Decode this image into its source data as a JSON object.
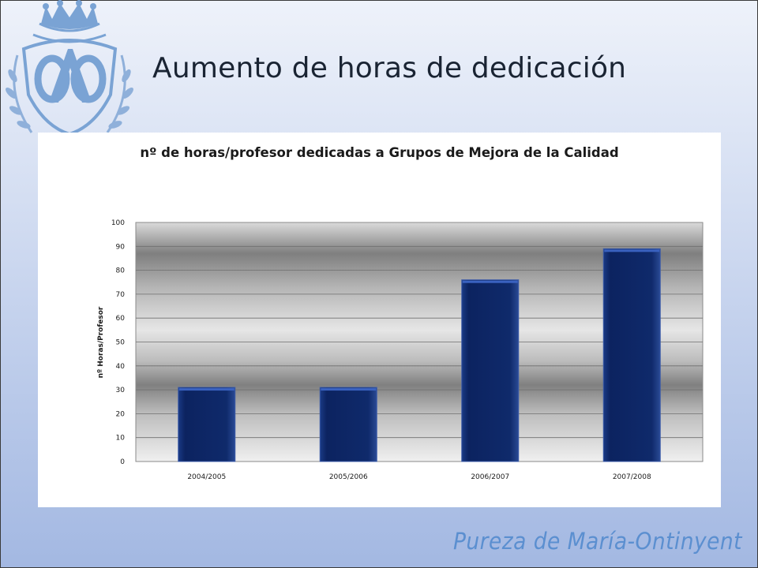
{
  "slide": {
    "title": "Aumento de horas de dedicación",
    "footer_text": "Pureza de María-Ontinyent"
  },
  "colors": {
    "bar_fill": "#0f2a6b",
    "bar_edge": "#3a5aa8",
    "title_text": "#1a2433",
    "crest": "#7aa3d4",
    "footer_text": "#5b8fd0"
  },
  "chart_data": {
    "type": "bar",
    "title": "nº de horas/profesor dedicadas a Grupos de Mejora de la Calidad",
    "xlabel": "",
    "ylabel": "nº Horas/Profesor",
    "categories": [
      "2004/2005",
      "2005/2006",
      "2006/2007",
      "2007/2008"
    ],
    "values": [
      31,
      31,
      76,
      89
    ],
    "ylim": [
      0,
      100
    ],
    "yticks": [
      0,
      10,
      20,
      30,
      40,
      50,
      60,
      70,
      80,
      90,
      100
    ],
    "grid": true,
    "legend": "none"
  }
}
